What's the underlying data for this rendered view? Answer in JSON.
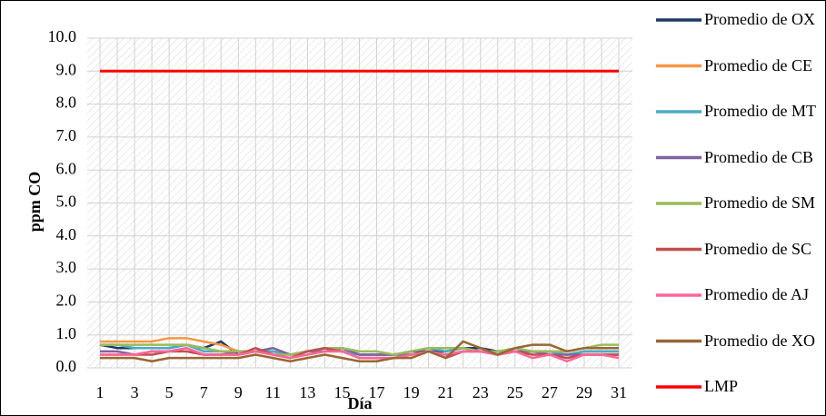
{
  "chart_data": {
    "type": "line",
    "y_label": "ppm CO",
    "x_label": "Día",
    "categories": [
      1,
      null,
      3,
      null,
      5,
      null,
      7,
      null,
      9,
      null,
      11,
      null,
      13,
      null,
      15,
      null,
      17,
      null,
      19,
      null,
      21,
      null,
      23,
      null,
      25,
      null,
      27,
      null,
      29,
      null,
      31
    ],
    "ylim": [
      0,
      10
    ],
    "yticks": [
      {
        "value": 0,
        "label": "0.0"
      },
      {
        "value": 1,
        "label": "1.0"
      },
      {
        "value": 2,
        "label": "2.0"
      },
      {
        "value": 3,
        "label": "3.0"
      },
      {
        "value": 4,
        "label": "4.0"
      },
      {
        "value": 5,
        "label": "5.0"
      },
      {
        "value": 6,
        "label": "6.0"
      },
      {
        "value": 7,
        "label": "7.0"
      },
      {
        "value": 8,
        "label": "8.0"
      },
      {
        "value": 9,
        "label": "9.0"
      },
      {
        "value": 10,
        "label": "10.0"
      }
    ],
    "grid": true,
    "legend": "right",
    "series": [
      {
        "name": "Promedio de OX",
        "color": "#1f3864",
        "values": [
          0.7,
          0.6,
          0.6,
          0.6,
          0.6,
          0.7,
          0.6,
          0.8,
          0.4,
          0.5,
          0.5,
          0.4,
          0.5,
          0.6,
          0.6,
          0.4,
          0.4,
          0.4,
          0.5,
          0.5,
          0.5,
          0.6,
          0.6,
          0.5,
          0.5,
          0.5,
          0.5,
          0.4,
          0.5,
          0.5,
          0.5
        ]
      },
      {
        "name": "Promedio de CE",
        "color": "#f79646",
        "values": [
          0.8,
          0.8,
          0.8,
          0.8,
          0.9,
          0.9,
          0.8,
          0.7,
          0.5,
          0.5,
          0.5,
          0.4,
          0.5,
          0.5,
          0.5,
          0.4,
          0.4,
          0.4,
          0.4,
          0.5,
          0.4,
          0.5,
          0.5,
          0.5,
          0.5,
          0.5,
          0.5,
          0.4,
          0.5,
          0.5,
          0.5
        ]
      },
      {
        "name": "Promedio de MT",
        "color": "#4bacc6",
        "values": [
          0.7,
          0.7,
          0.6,
          0.6,
          0.6,
          0.7,
          0.5,
          0.5,
          0.5,
          0.5,
          0.5,
          0.4,
          0.5,
          0.6,
          0.5,
          0.4,
          0.4,
          0.4,
          0.5,
          0.6,
          0.5,
          0.6,
          0.5,
          0.5,
          0.5,
          0.5,
          0.5,
          0.4,
          0.5,
          0.5,
          0.5
        ]
      },
      {
        "name": "Promedio de CB",
        "color": "#8064a2",
        "values": [
          0.5,
          0.5,
          0.4,
          0.5,
          0.5,
          0.6,
          0.4,
          0.4,
          0.5,
          0.5,
          0.6,
          0.4,
          0.5,
          0.5,
          0.6,
          0.4,
          0.4,
          0.4,
          0.4,
          0.5,
          0.4,
          0.5,
          0.5,
          0.4,
          0.5,
          0.5,
          0.4,
          0.4,
          0.4,
          0.4,
          0.4
        ]
      },
      {
        "name": "Promedio de SM",
        "color": "#9bbb59",
        "values": [
          0.7,
          0.7,
          0.7,
          0.7,
          0.7,
          0.7,
          0.6,
          0.5,
          0.5,
          0.5,
          0.4,
          0.4,
          0.5,
          0.6,
          0.6,
          0.5,
          0.5,
          0.4,
          0.5,
          0.6,
          0.6,
          0.6,
          0.5,
          0.5,
          0.6,
          0.5,
          0.5,
          0.5,
          0.6,
          0.7,
          0.7
        ]
      },
      {
        "name": "Promedio de SC",
        "color": "#c0504d",
        "values": [
          0.4,
          0.4,
          0.4,
          0.4,
          0.5,
          0.5,
          0.4,
          0.4,
          0.4,
          0.6,
          0.4,
          0.3,
          0.5,
          0.6,
          0.5,
          0.3,
          0.3,
          0.3,
          0.4,
          0.5,
          0.3,
          0.5,
          0.5,
          0.4,
          0.5,
          0.4,
          0.4,
          0.3,
          0.4,
          0.4,
          0.4
        ]
      },
      {
        "name": "Promedio de AJ",
        "color": "#ff6699",
        "values": [
          0.4,
          0.4,
          0.4,
          0.5,
          0.5,
          0.6,
          0.4,
          0.4,
          0.4,
          0.5,
          0.4,
          0.3,
          0.4,
          0.5,
          0.5,
          0.3,
          0.3,
          0.3,
          0.4,
          0.5,
          0.4,
          0.5,
          0.5,
          0.4,
          0.5,
          0.3,
          0.4,
          0.2,
          0.4,
          0.4,
          0.3
        ]
      },
      {
        "name": "Promedio de XO",
        "color": "#996633",
        "values": [
          0.3,
          0.3,
          0.3,
          0.2,
          0.3,
          0.3,
          0.3,
          0.3,
          0.3,
          0.4,
          0.3,
          0.2,
          0.3,
          0.4,
          0.3,
          0.2,
          0.2,
          0.3,
          0.3,
          0.5,
          0.3,
          0.8,
          0.6,
          0.4,
          0.6,
          0.7,
          0.7,
          0.5,
          0.6,
          0.6,
          0.6
        ]
      },
      {
        "name": "LMP",
        "color": "#ff0000",
        "values": [
          9,
          9,
          9,
          9,
          9,
          9,
          9,
          9,
          9,
          9,
          9,
          9,
          9,
          9,
          9,
          9,
          9,
          9,
          9,
          9,
          9,
          9,
          9,
          9,
          9,
          9,
          9,
          9,
          9,
          9,
          9
        ]
      }
    ]
  }
}
